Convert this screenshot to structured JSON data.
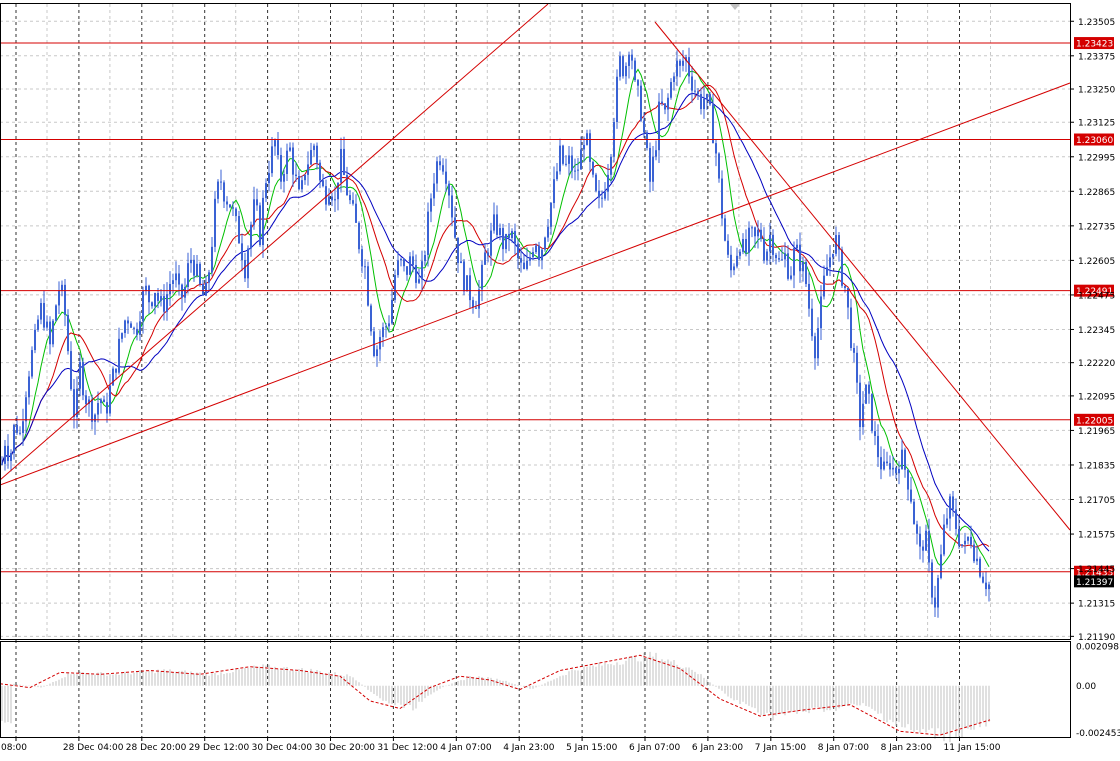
{
  "chart_data": {
    "type": "candlestick",
    "main": {
      "y_axis_ticks": [
        "1.23505",
        "1.23375",
        "1.23250",
        "1.23125",
        "1.22995",
        "1.22865",
        "1.22735",
        "1.22605",
        "1.22475",
        "1.22345",
        "1.22220",
        "1.22095",
        "1.21965",
        "1.21835",
        "1.21705",
        "1.21575",
        "1.21445",
        "1.21315",
        "1.21190"
      ],
      "ylim": [
        1.2118,
        1.2357
      ],
      "horizontal_levels": [
        {
          "label": "1.23423",
          "value": 1.23423
        },
        {
          "label": "1.23060",
          "value": 1.2306
        },
        {
          "label": "1.22491",
          "value": 1.22491
        },
        {
          "label": "1.22005",
          "value": 1.22005
        },
        {
          "label": "1.21433",
          "value": 1.21433
        }
      ],
      "current_price_label": "1.21397",
      "current_price": 1.21397,
      "price_path": [
        [
          0,
          1.2178
        ],
        [
          5,
          1.2193
        ],
        [
          10,
          1.2186
        ],
        [
          15,
          1.22
        ],
        [
          20,
          1.2195
        ],
        [
          25,
          1.221
        ],
        [
          30,
          1.2222
        ],
        [
          35,
          1.223
        ],
        [
          40,
          1.2243
        ],
        [
          45,
          1.2238
        ],
        [
          50,
          1.2228
        ],
        [
          55,
          1.2242
        ],
        [
          60,
          1.2252
        ],
        [
          65,
          1.224
        ],
        [
          70,
          1.2218
        ],
        [
          75,
          1.22
        ],
        [
          80,
          1.222
        ],
        [
          85,
          1.221
        ],
        [
          90,
          1.2205
        ],
        [
          95,
          1.2203
        ],
        [
          100,
          1.221
        ],
        [
          105,
          1.2202
        ],
        [
          110,
          1.2212
        ],
        [
          115,
          1.222
        ],
        [
          120,
          1.223
        ],
        [
          125,
          1.2238
        ],
        [
          130,
          1.224
        ],
        [
          135,
          1.2232
        ],
        [
          140,
          1.2242
        ],
        [
          145,
          1.225
        ],
        [
          150,
          1.2245
        ],
        [
          155,
          1.225
        ],
        [
          160,
          1.2243
        ],
        [
          165,
          1.2245
        ],
        [
          170,
          1.2252
        ],
        [
          175,
          1.2255
        ],
        [
          180,
          1.2245
        ],
        [
          185,
          1.225
        ],
        [
          190,
          1.2262
        ],
        [
          195,
          1.2258
        ],
        [
          200,
          1.225
        ],
        [
          205,
          1.2245
        ],
        [
          210,
          1.226
        ],
        [
          215,
          1.228
        ],
        [
          220,
          1.2292
        ],
        [
          225,
          1.2285
        ],
        [
          230,
          1.2282
        ],
        [
          235,
          1.2275
        ],
        [
          240,
          1.2268
        ],
        [
          245,
          1.2258
        ],
        [
          250,
          1.2272
        ],
        [
          255,
          1.2282
        ],
        [
          260,
          1.227
        ],
        [
          265,
          1.229
        ],
        [
          270,
          1.2298
        ],
        [
          275,
          1.2305
        ],
        [
          280,
          1.229
        ],
        [
          285,
          1.2298
        ],
        [
          290,
          1.2302
        ],
        [
          295,
          1.2292
        ],
        [
          300,
          1.2282
        ],
        [
          305,
          1.2295
        ],
        [
          310,
          1.23
        ],
        [
          315,
          1.2305
        ],
        [
          320,
          1.229
        ],
        [
          325,
          1.2285
        ],
        [
          330,
          1.229
        ],
        [
          335,
          1.2282
        ],
        [
          340,
          1.23
        ],
        [
          345,
          1.229
        ],
        [
          350,
          1.2282
        ],
        [
          355,
          1.2275
        ],
        [
          360,
          1.2265
        ],
        [
          365,
          1.2258
        ],
        [
          370,
          1.224
        ],
        [
          375,
          1.2225
        ],
        [
          380,
          1.2232
        ],
        [
          385,
          1.2235
        ],
        [
          390,
          1.224
        ],
        [
          395,
          1.2255
        ],
        [
          400,
          1.226
        ],
        [
          405,
          1.2255
        ],
        [
          410,
          1.226
        ],
        [
          415,
          1.2258
        ],
        [
          420,
          1.225
        ],
        [
          425,
          1.2265
        ],
        [
          430,
          1.2282
        ],
        [
          435,
          1.2295
        ],
        [
          440,
          1.23
        ],
        [
          445,
          1.2296
        ],
        [
          450,
          1.2285
        ],
        [
          455,
          1.227
        ],
        [
          460,
          1.2258
        ],
        [
          465,
          1.2252
        ],
        [
          470,
          1.2248
        ],
        [
          475,
          1.2245
        ],
        [
          480,
          1.225
        ],
        [
          485,
          1.2262
        ],
        [
          490,
          1.2268
        ],
        [
          495,
          1.2275
        ],
        [
          500,
          1.227
        ],
        [
          505,
          1.2265
        ],
        [
          510,
          1.2272
        ],
        [
          515,
          1.2265
        ],
        [
          520,
          1.2258
        ],
        [
          525,
          1.2255
        ],
        [
          530,
          1.2262
        ],
        [
          535,
          1.227
        ],
        [
          540,
          1.2262
        ],
        [
          545,
          1.2272
        ],
        [
          550,
          1.228
        ],
        [
          555,
          1.229
        ],
        [
          560,
          1.23
        ],
        [
          565,
          1.2295
        ],
        [
          570,
          1.2298
        ],
        [
          575,
          1.2292
        ],
        [
          580,
          1.2298
        ],
        [
          585,
          1.231
        ],
        [
          590,
          1.2295
        ],
        [
          595,
          1.2285
        ],
        [
          600,
          1.228
        ],
        [
          605,
          1.229
        ],
        [
          610,
          1.23
        ],
        [
          615,
          1.232
        ],
        [
          620,
          1.2335
        ],
        [
          625,
          1.2332
        ],
        [
          630,
          1.2345
        ],
        [
          635,
          1.2325
        ],
        [
          640,
          1.232
        ],
        [
          645,
          1.2305
        ],
        [
          650,
          1.229
        ],
        [
          655,
          1.2302
        ],
        [
          660,
          1.232
        ],
        [
          665,
          1.2315
        ],
        [
          670,
          1.2325
        ],
        [
          675,
          1.2335
        ],
        [
          680,
          1.2332
        ],
        [
          685,
          1.2338
        ],
        [
          690,
          1.233
        ],
        [
          695,
          1.2325
        ],
        [
          700,
          1.232
        ],
        [
          705,
          1.2322
        ],
        [
          710,
          1.2315
        ],
        [
          715,
          1.2305
        ],
        [
          720,
          1.2285
        ],
        [
          725,
          1.2268
        ],
        [
          730,
          1.2255
        ],
        [
          735,
          1.2262
        ],
        [
          740,
          1.2268
        ],
        [
          745,
          1.2262
        ],
        [
          750,
          1.227
        ],
        [
          755,
          1.2268
        ],
        [
          760,
          1.2272
        ],
        [
          765,
          1.2262
        ],
        [
          770,
          1.227
        ],
        [
          775,
          1.2265
        ],
        [
          780,
          1.2258
        ],
        [
          785,
          1.2262
        ],
        [
          790,
          1.2255
        ],
        [
          795,
          1.2265
        ],
        [
          800,
          1.226
        ],
        [
          805,
          1.2255
        ],
        [
          810,
          1.224
        ],
        [
          815,
          1.2228
        ],
        [
          820,
          1.224
        ],
        [
          825,
          1.2255
        ],
        [
          830,
          1.2262
        ],
        [
          835,
          1.227
        ],
        [
          840,
          1.2258
        ],
        [
          845,
          1.225
        ],
        [
          850,
          1.2235
        ],
        [
          855,
          1.2218
        ],
        [
          860,
          1.22
        ],
        [
          865,
          1.2212
        ],
        [
          870,
          1.2205
        ],
        [
          875,
          1.2192
        ],
        [
          880,
          1.2185
        ],
        [
          885,
          1.218
        ],
        [
          890,
          1.2185
        ],
        [
          895,
          1.218
        ],
        [
          900,
          1.2188
        ],
        [
          905,
          1.2182
        ],
        [
          910,
          1.2175
        ],
        [
          915,
          1.216
        ],
        [
          920,
          1.215
        ],
        [
          925,
          1.2158
        ],
        [
          930,
          1.214
        ],
        [
          935,
          1.2132
        ],
        [
          940,
          1.2145
        ],
        [
          945,
          1.2162
        ],
        [
          950,
          1.2168
        ],
        [
          955,
          1.2162
        ],
        [
          960,
          1.2155
        ],
        [
          965,
          1.2152
        ],
        [
          970,
          1.2158
        ],
        [
          975,
          1.215
        ],
        [
          980,
          1.2145
        ],
        [
          985,
          1.214
        ],
        [
          990,
          1.2138
        ]
      ]
    },
    "oscillator": {
      "y_axis_ticks": [
        "0.002098",
        "0.00",
        "-0.002453"
      ],
      "ylim": [
        -0.0027,
        0.0023
      ],
      "signal_path": [
        [
          0,
          0.0001
        ],
        [
          30,
          -0.0001
        ],
        [
          60,
          0.0007
        ],
        [
          100,
          0.0006
        ],
        [
          150,
          0.0008
        ],
        [
          200,
          0.0006
        ],
        [
          250,
          0.001
        ],
        [
          300,
          0.0008
        ],
        [
          340,
          0.0005
        ],
        [
          370,
          -0.0008
        ],
        [
          400,
          -0.0012
        ],
        [
          430,
          -0.0001
        ],
        [
          460,
          0.0005
        ],
        [
          490,
          0.0003
        ],
        [
          520,
          -0.0002
        ],
        [
          560,
          0.0008
        ],
        [
          600,
          0.0012
        ],
        [
          640,
          0.0016
        ],
        [
          680,
          0.0009
        ],
        [
          720,
          -0.0007
        ],
        [
          760,
          -0.0016
        ],
        [
          800,
          -0.0013
        ],
        [
          850,
          -0.001
        ],
        [
          900,
          -0.0024
        ],
        [
          940,
          -0.0026
        ],
        [
          990,
          -0.0018
        ]
      ]
    },
    "x_axis_labels": [
      "08:00",
      "28 Dec 04:00",
      "28 Dec 20:00",
      "29 Dec 12:00",
      "30 Dec 04:00",
      "30 Dec 20:00",
      "31 Dec 12:00",
      "4 Jan 07:00",
      "4 Jan 23:00",
      "5 Jan 15:00",
      "6 Jan 07:00",
      "6 Jan 23:00",
      "7 Jan 15:00",
      "8 Jan 07:00",
      "8 Jan 23:00",
      "11 Jan 15:00"
    ],
    "grid": true,
    "colors": {
      "candles": "#3a62d4",
      "ma_fast": "#00c000",
      "ma_mid": "#d40000",
      "ma_slow": "#0000c0",
      "levels": "#d40000",
      "trendlines": "#d40000",
      "signal": "#d40000",
      "histogram": "#c0c0c0",
      "current_price_bg": "#000000"
    }
  }
}
